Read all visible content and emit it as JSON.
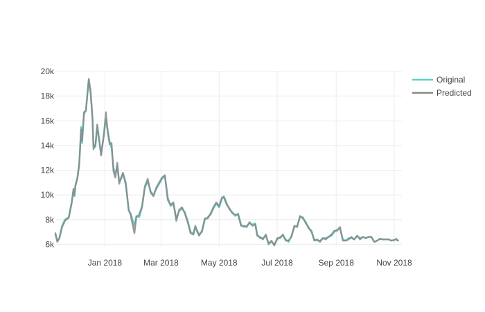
{
  "chart_data": {
    "type": "line",
    "title": "",
    "xlabel": "",
    "ylabel": "",
    "x_start": "2017-11-10",
    "x_end": "2018-11-05",
    "xlim": [
      "2017-11-10",
      "2018-11-09"
    ],
    "ylim": [
      5800,
      20000
    ],
    "grid": true,
    "legend_position": "top-right",
    "x_ticks": [
      {
        "date": "2018-01-01",
        "label": "Jan 2018"
      },
      {
        "date": "2018-03-01",
        "label": "Mar 2018"
      },
      {
        "date": "2018-05-01",
        "label": "May 2018"
      },
      {
        "date": "2018-07-01",
        "label": "Jul 2018"
      },
      {
        "date": "2018-09-01",
        "label": "Sep 2018"
      },
      {
        "date": "2018-11-01",
        "label": "Nov 2018"
      }
    ],
    "y_ticks": [
      {
        "value": 6000,
        "label": "6k"
      },
      {
        "value": 8000,
        "label": "8k"
      },
      {
        "value": 10000,
        "label": "10k"
      },
      {
        "value": 12000,
        "label": "12k"
      },
      {
        "value": 14000,
        "label": "14k"
      },
      {
        "value": 16000,
        "label": "16k"
      },
      {
        "value": 18000,
        "label": "18k"
      },
      {
        "value": 20000,
        "label": "20k"
      }
    ],
    "series": [
      {
        "name": "Original",
        "color": "#5ad1c9",
        "points": [
          [
            "2017-11-10",
            6800
          ],
          [
            "2017-11-12",
            6300
          ],
          [
            "2017-11-14",
            6500
          ],
          [
            "2017-11-17",
            7500
          ],
          [
            "2017-11-20",
            8000
          ],
          [
            "2017-11-24",
            8200
          ],
          [
            "2017-11-27",
            9400
          ],
          [
            "2017-11-29",
            10400
          ],
          [
            "2017-11-30",
            9900
          ],
          [
            "2017-12-01",
            10800
          ],
          [
            "2017-12-03",
            11400
          ],
          [
            "2017-12-05",
            12500
          ],
          [
            "2017-12-07",
            15500
          ],
          [
            "2017-12-08",
            14200
          ],
          [
            "2017-12-10",
            16500
          ],
          [
            "2017-12-12",
            16900
          ],
          [
            "2017-12-15",
            19300
          ],
          [
            "2017-12-17",
            18200
          ],
          [
            "2017-12-19",
            16200
          ],
          [
            "2017-12-20",
            14000
          ],
          [
            "2017-12-22",
            13900
          ],
          [
            "2017-12-24",
            15500
          ],
          [
            "2017-12-26",
            14500
          ],
          [
            "2017-12-28",
            13300
          ],
          [
            "2017-12-31",
            14900
          ],
          [
            "2018-01-02",
            16100
          ],
          [
            "2018-01-04",
            15200
          ],
          [
            "2018-01-06",
            14300
          ],
          [
            "2018-01-08",
            13800
          ],
          [
            "2018-01-10",
            12200
          ],
          [
            "2018-01-12",
            11700
          ],
          [
            "2018-01-14",
            12300
          ],
          [
            "2018-01-16",
            11100
          ],
          [
            "2018-01-18",
            11300
          ],
          [
            "2018-01-20",
            11700
          ],
          [
            "2018-01-23",
            11000
          ],
          [
            "2018-01-26",
            8700
          ],
          [
            "2018-01-28",
            8500
          ],
          [
            "2018-02-01",
            7500
          ],
          [
            "2018-02-03",
            8300
          ],
          [
            "2018-02-06",
            8200
          ],
          [
            "2018-02-09",
            9000
          ],
          [
            "2018-02-12",
            10600
          ],
          [
            "2018-02-15",
            11100
          ],
          [
            "2018-02-18",
            10300
          ],
          [
            "2018-02-21",
            10000
          ],
          [
            "2018-02-24",
            10500
          ],
          [
            "2018-02-27",
            10900
          ],
          [
            "2018-03-02",
            11300
          ],
          [
            "2018-03-05",
            11500
          ],
          [
            "2018-03-08",
            9800
          ],
          [
            "2018-03-11",
            9100
          ],
          [
            "2018-03-14",
            9300
          ],
          [
            "2018-03-17",
            8100
          ],
          [
            "2018-03-20",
            8700
          ],
          [
            "2018-03-23",
            8900
          ],
          [
            "2018-03-26",
            8600
          ],
          [
            "2018-03-29",
            7900
          ],
          [
            "2018-04-01",
            7000
          ],
          [
            "2018-04-04",
            6900
          ],
          [
            "2018-04-06",
            7400
          ],
          [
            "2018-04-08",
            7100
          ],
          [
            "2018-04-10",
            6800
          ],
          [
            "2018-04-13",
            7000
          ],
          [
            "2018-04-16",
            8000
          ],
          [
            "2018-04-19",
            8200
          ],
          [
            "2018-04-22",
            8400
          ],
          [
            "2018-04-25",
            8900
          ],
          [
            "2018-04-28",
            9300
          ],
          [
            "2018-05-01",
            9000
          ],
          [
            "2018-05-04",
            9700
          ],
          [
            "2018-05-06",
            9900
          ],
          [
            "2018-05-09",
            9300
          ],
          [
            "2018-05-12",
            8800
          ],
          [
            "2018-05-15",
            8600
          ],
          [
            "2018-05-18",
            8300
          ],
          [
            "2018-05-21",
            8500
          ],
          [
            "2018-05-24",
            7600
          ],
          [
            "2018-05-27",
            7400
          ],
          [
            "2018-05-30",
            7500
          ],
          [
            "2018-06-02",
            7700
          ],
          [
            "2018-06-05",
            7600
          ],
          [
            "2018-06-08",
            7700
          ],
          [
            "2018-06-10",
            6800
          ],
          [
            "2018-06-13",
            6500
          ],
          [
            "2018-06-16",
            6500
          ],
          [
            "2018-06-19",
            6700
          ],
          [
            "2018-06-22",
            6100
          ],
          [
            "2018-06-25",
            6200
          ],
          [
            "2018-06-28",
            6000
          ],
          [
            "2018-07-01",
            6400
          ],
          [
            "2018-07-04",
            6600
          ],
          [
            "2018-07-07",
            6700
          ],
          [
            "2018-07-10",
            6400
          ],
          [
            "2018-07-13",
            6200
          ],
          [
            "2018-07-16",
            6700
          ],
          [
            "2018-07-19",
            7400
          ],
          [
            "2018-07-22",
            7500
          ],
          [
            "2018-07-25",
            8200
          ],
          [
            "2018-07-28",
            8200
          ],
          [
            "2018-07-31",
            7700
          ],
          [
            "2018-08-03",
            7400
          ],
          [
            "2018-08-06",
            7000
          ],
          [
            "2018-08-09",
            6400
          ],
          [
            "2018-08-12",
            6300
          ],
          [
            "2018-08-15",
            6300
          ],
          [
            "2018-08-18",
            6500
          ],
          [
            "2018-08-21",
            6500
          ],
          [
            "2018-08-24",
            6600
          ],
          [
            "2018-08-27",
            6700
          ],
          [
            "2018-08-30",
            7000
          ],
          [
            "2018-09-02",
            7200
          ],
          [
            "2018-09-05",
            7300
          ],
          [
            "2018-09-08",
            6400
          ],
          [
            "2018-09-11",
            6300
          ],
          [
            "2018-09-14",
            6500
          ],
          [
            "2018-09-17",
            6500
          ],
          [
            "2018-09-20",
            6400
          ],
          [
            "2018-09-23",
            6700
          ],
          [
            "2018-09-26",
            6500
          ],
          [
            "2018-09-29",
            6600
          ],
          [
            "2018-10-02",
            6500
          ],
          [
            "2018-10-05",
            6600
          ],
          [
            "2018-10-08",
            6600
          ],
          [
            "2018-10-11",
            6200
          ],
          [
            "2018-10-14",
            6300
          ],
          [
            "2018-10-17",
            6450
          ],
          [
            "2018-10-20",
            6400
          ],
          [
            "2018-10-23",
            6400
          ],
          [
            "2018-10-26",
            6400
          ],
          [
            "2018-10-29",
            6300
          ],
          [
            "2018-11-01",
            6350
          ],
          [
            "2018-11-03",
            6400
          ],
          [
            "2018-11-05",
            6300
          ]
        ]
      },
      {
        "name": "Predicted",
        "color": "#888888",
        "points": [
          [
            "2017-11-10",
            6900
          ],
          [
            "2017-11-12",
            6200
          ],
          [
            "2017-11-14",
            6450
          ],
          [
            "2017-11-17",
            7400
          ],
          [
            "2017-11-20",
            7900
          ],
          [
            "2017-11-24",
            8150
          ],
          [
            "2017-11-27",
            9300
          ],
          [
            "2017-11-29",
            10500
          ],
          [
            "2017-11-30",
            10000
          ],
          [
            "2017-12-01",
            10700
          ],
          [
            "2017-12-03",
            11300
          ],
          [
            "2017-12-05",
            12400
          ],
          [
            "2017-12-07",
            15300
          ],
          [
            "2017-12-08",
            14400
          ],
          [
            "2017-12-10",
            16700
          ],
          [
            "2017-12-12",
            16800
          ],
          [
            "2017-12-15",
            19400
          ],
          [
            "2017-12-17",
            18400
          ],
          [
            "2017-12-19",
            16000
          ],
          [
            "2017-12-20",
            13700
          ],
          [
            "2017-12-22",
            14100
          ],
          [
            "2017-12-24",
            15700
          ],
          [
            "2017-12-26",
            14400
          ],
          [
            "2017-12-28",
            13200
          ],
          [
            "2017-12-31",
            15000
          ],
          [
            "2018-01-02",
            16700
          ],
          [
            "2018-01-04",
            15100
          ],
          [
            "2018-01-06",
            14100
          ],
          [
            "2018-01-08",
            14200
          ],
          [
            "2018-01-10",
            11900
          ],
          [
            "2018-01-12",
            11400
          ],
          [
            "2018-01-14",
            12600
          ],
          [
            "2018-01-16",
            10900
          ],
          [
            "2018-01-18",
            11400
          ],
          [
            "2018-01-20",
            11800
          ],
          [
            "2018-01-23",
            10800
          ],
          [
            "2018-01-26",
            8800
          ],
          [
            "2018-01-28",
            8400
          ],
          [
            "2018-02-01",
            6900
          ],
          [
            "2018-02-03",
            8200
          ],
          [
            "2018-02-06",
            8400
          ],
          [
            "2018-02-09",
            9100
          ],
          [
            "2018-02-12",
            10700
          ],
          [
            "2018-02-15",
            11300
          ],
          [
            "2018-02-18",
            10200
          ],
          [
            "2018-02-21",
            9900
          ],
          [
            "2018-02-24",
            10600
          ],
          [
            "2018-02-27",
            11000
          ],
          [
            "2018-03-02",
            11400
          ],
          [
            "2018-03-05",
            11600
          ],
          [
            "2018-03-08",
            9600
          ],
          [
            "2018-03-11",
            9200
          ],
          [
            "2018-03-14",
            9400
          ],
          [
            "2018-03-17",
            7900
          ],
          [
            "2018-03-20",
            8800
          ],
          [
            "2018-03-23",
            9000
          ],
          [
            "2018-03-26",
            8500
          ],
          [
            "2018-03-29",
            7800
          ],
          [
            "2018-04-01",
            6900
          ],
          [
            "2018-04-04",
            6800
          ],
          [
            "2018-04-06",
            7500
          ],
          [
            "2018-04-08",
            7000
          ],
          [
            "2018-04-10",
            6700
          ],
          [
            "2018-04-13",
            7100
          ],
          [
            "2018-04-16",
            8100
          ],
          [
            "2018-04-19",
            8100
          ],
          [
            "2018-04-22",
            8500
          ],
          [
            "2018-04-25",
            9000
          ],
          [
            "2018-04-28",
            9400
          ],
          [
            "2018-05-01",
            9100
          ],
          [
            "2018-05-04",
            9800
          ],
          [
            "2018-05-06",
            9800
          ],
          [
            "2018-05-09",
            9200
          ],
          [
            "2018-05-12",
            8900
          ],
          [
            "2018-05-15",
            8500
          ],
          [
            "2018-05-18",
            8400
          ],
          [
            "2018-05-21",
            8400
          ],
          [
            "2018-05-24",
            7500
          ],
          [
            "2018-05-27",
            7500
          ],
          [
            "2018-05-30",
            7400
          ],
          [
            "2018-06-02",
            7800
          ],
          [
            "2018-06-05",
            7500
          ],
          [
            "2018-06-08",
            7600
          ],
          [
            "2018-06-10",
            6700
          ],
          [
            "2018-06-13",
            6600
          ],
          [
            "2018-06-16",
            6400
          ],
          [
            "2018-06-19",
            6800
          ],
          [
            "2018-06-22",
            6000
          ],
          [
            "2018-06-25",
            6300
          ],
          [
            "2018-06-28",
            5900
          ],
          [
            "2018-07-01",
            6500
          ],
          [
            "2018-07-04",
            6500
          ],
          [
            "2018-07-07",
            6800
          ],
          [
            "2018-07-10",
            6300
          ],
          [
            "2018-07-13",
            6300
          ],
          [
            "2018-07-16",
            6600
          ],
          [
            "2018-07-19",
            7500
          ],
          [
            "2018-07-22",
            7400
          ],
          [
            "2018-07-25",
            8300
          ],
          [
            "2018-07-28",
            8100
          ],
          [
            "2018-07-31",
            7800
          ],
          [
            "2018-08-03",
            7300
          ],
          [
            "2018-08-06",
            7100
          ],
          [
            "2018-08-09",
            6300
          ],
          [
            "2018-08-12",
            6400
          ],
          [
            "2018-08-15",
            6200
          ],
          [
            "2018-08-18",
            6500
          ],
          [
            "2018-08-21",
            6400
          ],
          [
            "2018-08-24",
            6600
          ],
          [
            "2018-08-27",
            6800
          ],
          [
            "2018-08-30",
            7100
          ],
          [
            "2018-09-02",
            7100
          ],
          [
            "2018-09-05",
            7400
          ],
          [
            "2018-09-08",
            6300
          ],
          [
            "2018-09-11",
            6300
          ],
          [
            "2018-09-14",
            6400
          ],
          [
            "2018-09-17",
            6600
          ],
          [
            "2018-09-20",
            6400
          ],
          [
            "2018-09-23",
            6700
          ],
          [
            "2018-09-26",
            6400
          ],
          [
            "2018-09-29",
            6600
          ],
          [
            "2018-10-02",
            6500
          ],
          [
            "2018-10-05",
            6600
          ],
          [
            "2018-10-08",
            6600
          ],
          [
            "2018-10-11",
            6200
          ],
          [
            "2018-10-14",
            6300
          ],
          [
            "2018-10-17",
            6450
          ],
          [
            "2018-10-20",
            6400
          ],
          [
            "2018-10-23",
            6400
          ],
          [
            "2018-10-26",
            6400
          ],
          [
            "2018-10-29",
            6300
          ],
          [
            "2018-11-01",
            6350
          ],
          [
            "2018-11-03",
            6450
          ],
          [
            "2018-11-05",
            6300
          ]
        ]
      }
    ]
  }
}
